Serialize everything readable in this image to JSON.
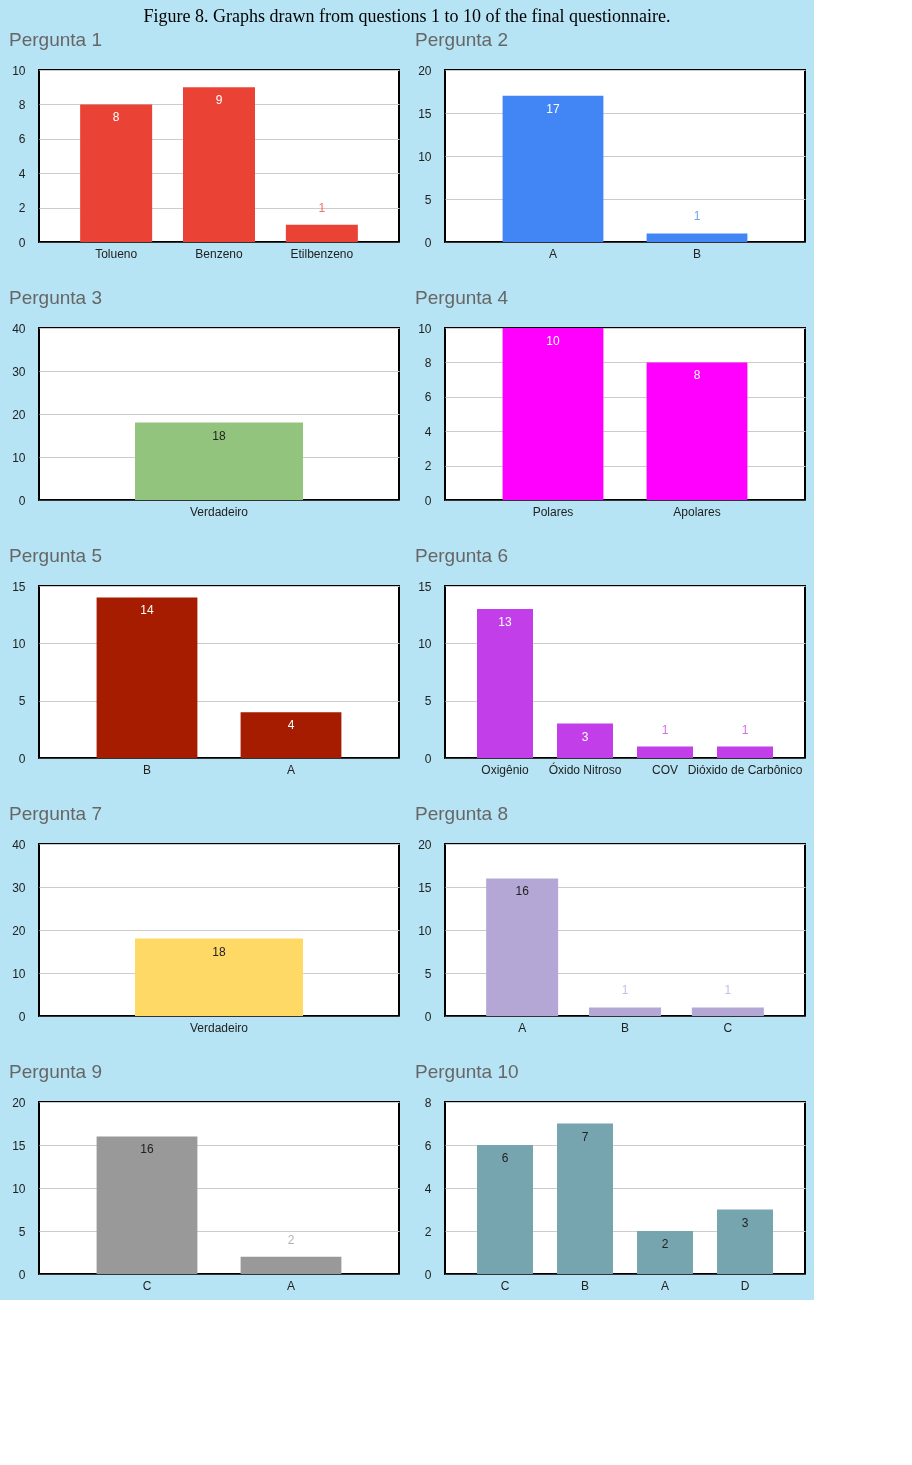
{
  "chart_data": [
    {
      "type": "bar",
      "title": "Pergunta 1",
      "categories": [
        "Tolueno",
        "Benzeno",
        "Etilbenzeno"
      ],
      "values": [
        8,
        9,
        1
      ],
      "color": "#ea4335",
      "ylim": [
        0,
        10
      ],
      "yticks": [
        0,
        2,
        4,
        6,
        8,
        10
      ],
      "grid": "y",
      "data_labels": true,
      "annotations": [
        "Figure 8. Graphs drawn from questions 1 to 10 of the final questionnaire."
      ]
    },
    {
      "type": "bar",
      "title": "Pergunta 2",
      "categories": [
        "A",
        "B"
      ],
      "values": [
        17,
        1
      ],
      "color": "#4285f4",
      "ylim": [
        0,
        20
      ],
      "yticks": [
        0,
        5,
        10,
        15,
        20
      ],
      "grid": "y",
      "data_labels": true
    },
    {
      "type": "bar",
      "title": "Pergunta 3",
      "categories": [
        "Verdadeiro"
      ],
      "values": [
        18
      ],
      "color": "#93c47d",
      "ylim": [
        0,
        40
      ],
      "yticks": [
        0,
        10,
        20,
        30,
        40
      ],
      "grid": "y",
      "data_labels": true
    },
    {
      "type": "bar",
      "title": "Pergunta 4",
      "categories": [
        "Polares",
        "Apolares"
      ],
      "values": [
        10,
        8
      ],
      "color": "#ff00ff",
      "ylim": [
        0,
        10
      ],
      "yticks": [
        0,
        2,
        4,
        6,
        8,
        10
      ],
      "grid": "y",
      "data_labels": true
    },
    {
      "type": "bar",
      "title": "Pergunta 5",
      "categories": [
        "B",
        "A"
      ],
      "values": [
        14,
        4
      ],
      "color": "#a61c00",
      "ylim": [
        0,
        15
      ],
      "yticks": [
        0,
        5,
        10,
        15
      ],
      "grid": "y",
      "data_labels": true
    },
    {
      "type": "bar",
      "title": "Pergunta 6",
      "categories": [
        "Oxigênio",
        "Óxido Nitroso",
        "COV",
        "Dióxido de Carbônico"
      ],
      "values": [
        13,
        3,
        1,
        1
      ],
      "color": "#c13ee8",
      "ylim": [
        0,
        15
      ],
      "yticks": [
        0,
        5,
        10,
        15
      ],
      "grid": "y",
      "data_labels": true
    },
    {
      "type": "bar",
      "title": "Pergunta 7",
      "categories": [
        "Verdadeiro"
      ],
      "values": [
        18
      ],
      "color": "#ffd966",
      "ylim": [
        0,
        40
      ],
      "yticks": [
        0,
        10,
        20,
        30,
        40
      ],
      "grid": "y",
      "data_labels": true
    },
    {
      "type": "bar",
      "title": "Pergunta 8",
      "categories": [
        "A",
        "B",
        "C"
      ],
      "values": [
        16,
        1,
        1
      ],
      "color": "#b4a7d6",
      "ylim": [
        0,
        20
      ],
      "yticks": [
        0,
        5,
        10,
        15,
        20
      ],
      "grid": "y",
      "data_labels": true
    },
    {
      "type": "bar",
      "title": "Pergunta 9",
      "categories": [
        "C",
        "A"
      ],
      "values": [
        16,
        2
      ],
      "color": "#999999",
      "ylim": [
        0,
        20
      ],
      "yticks": [
        0,
        5,
        10,
        15,
        20
      ],
      "grid": "y",
      "data_labels": true
    },
    {
      "type": "bar",
      "title": "Pergunta 10",
      "categories": [
        "C",
        "B",
        "A",
        "D"
      ],
      "values": [
        6,
        7,
        2,
        3
      ],
      "color": "#76a5af",
      "ylim": [
        0,
        8
      ],
      "yticks": [
        0,
        2,
        4,
        6,
        8
      ],
      "grid": "y",
      "data_labels": true
    }
  ]
}
